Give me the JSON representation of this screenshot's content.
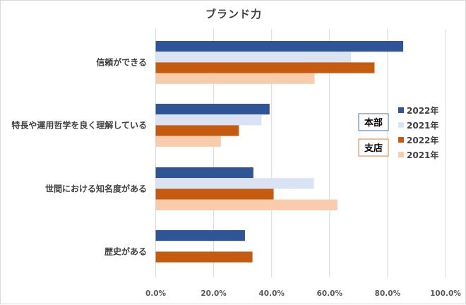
{
  "chart_data": {
    "type": "bar",
    "orientation": "horizontal",
    "title": "ブランド力",
    "xlabel": "",
    "ylabel": "",
    "xlim": [
      0,
      100
    ],
    "x_ticks": [
      "0.0%",
      "20.0%",
      "40.0%",
      "60.0%",
      "80.0%",
      "100.0%"
    ],
    "x_tick_values": [
      0,
      20,
      40,
      60,
      80,
      100
    ],
    "grid": true,
    "categories": [
      "信頼ができる",
      "特長や運用哲学を良く理解している",
      "世間における知名度がある",
      "歴史がある"
    ],
    "series": [
      {
        "name": "本部 2022年",
        "group": "本部",
        "year": "2022年",
        "color": "#2F5597",
        "values": [
          85.4,
          39.3,
          33.7,
          30.8
        ]
      },
      {
        "name": "本部 2021年",
        "group": "本部",
        "year": "2021年",
        "color": "#DAE3F3",
        "values": [
          67.4,
          36.5,
          54.6,
          null
        ]
      },
      {
        "name": "支店 2022年",
        "group": "支店",
        "year": "2022年",
        "color": "#C55A11",
        "values": [
          75.5,
          28.7,
          40.7,
          33.4
        ]
      },
      {
        "name": "支店 2021年",
        "group": "支店",
        "year": "2021年",
        "color": "#F8CBAD",
        "values": [
          54.8,
          22.5,
          62.7,
          null
        ]
      }
    ],
    "legend": {
      "placement": "right",
      "groups": [
        {
          "label": "本部",
          "border_color": "#4472C4"
        },
        {
          "label": "支店",
          "border_color": "#ED7D31"
        }
      ],
      "entries": [
        "2022年",
        "2021年",
        "2022年",
        "2021年"
      ]
    }
  }
}
